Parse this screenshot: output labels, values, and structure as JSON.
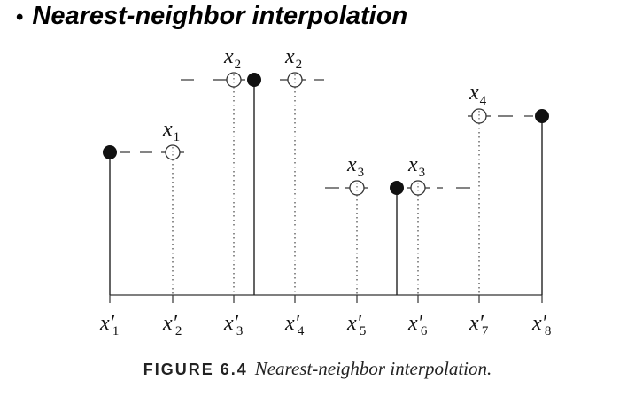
{
  "slide": {
    "bullet": "•",
    "title": "Nearest-neighbor interpolation"
  },
  "figure": {
    "caption_label": "FIGURE 6.4",
    "caption_text": "Nearest-neighbor interpolation.",
    "sample_labels": [
      {
        "base": "x",
        "sub": "1"
      },
      {
        "base": "x",
        "sub": "2"
      },
      {
        "base": "x",
        "sub": "2"
      },
      {
        "base": "x",
        "sub": "3"
      },
      {
        "base": "x",
        "sub": "3"
      },
      {
        "base": "x",
        "sub": "4"
      }
    ],
    "axis_labels": [
      {
        "base": "x′",
        "sub": "1"
      },
      {
        "base": "x′",
        "sub": "2"
      },
      {
        "base": "x′",
        "sub": "3"
      },
      {
        "base": "x′",
        "sub": "4"
      },
      {
        "base": "x′",
        "sub": "5"
      },
      {
        "base": "x′",
        "sub": "6"
      },
      {
        "base": "x′",
        "sub": "7"
      },
      {
        "base": "x′",
        "sub": "8"
      }
    ]
  }
}
